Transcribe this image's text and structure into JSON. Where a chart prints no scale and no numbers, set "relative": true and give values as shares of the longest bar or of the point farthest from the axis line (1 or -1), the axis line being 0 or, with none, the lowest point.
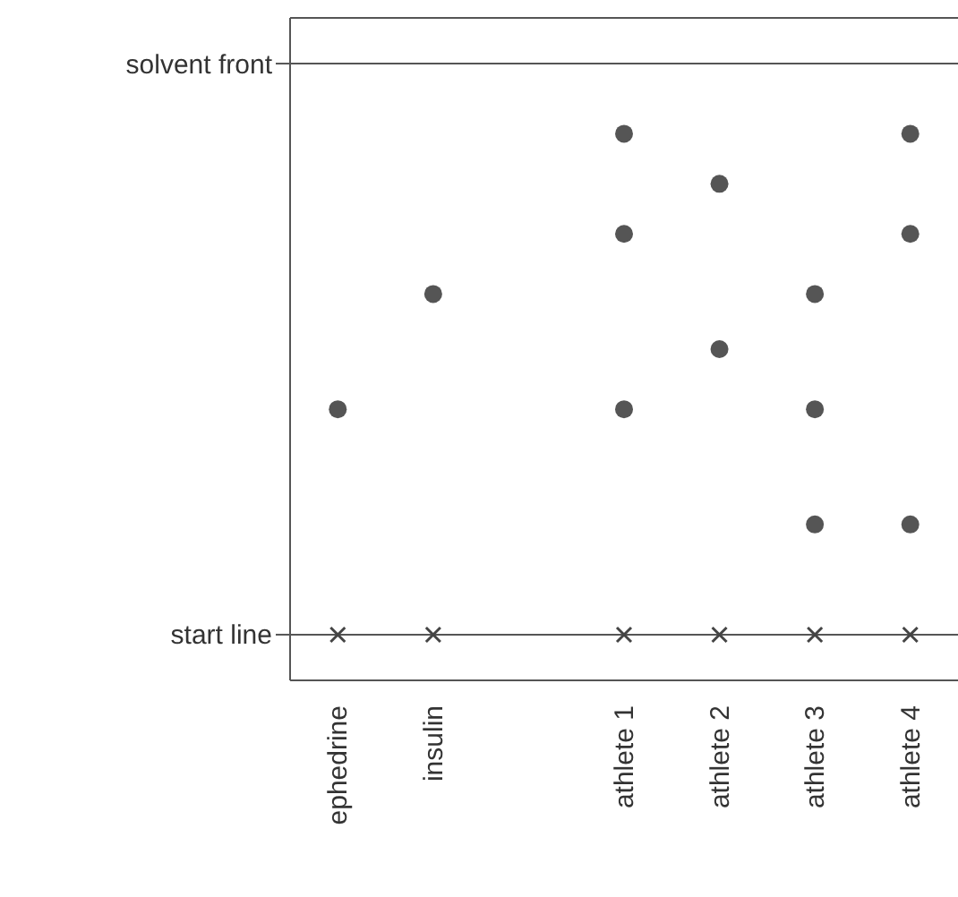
{
  "chart_data": {
    "type": "scatter",
    "relative": true,
    "categories": [
      "ephedrine",
      "insulin",
      null,
      "athlete 1",
      "athlete 2",
      "athlete 3",
      "athlete 4"
    ],
    "ref_lines": [
      {
        "axis": "y",
        "value": 1.14,
        "label": "solvent front",
        "color": "#555555"
      },
      {
        "axis": "y",
        "value": 0,
        "label": "start line",
        "color": "#555555"
      }
    ],
    "grid": false,
    "series": [
      {
        "color": "#555555",
        "marker": "circle",
        "x": [
          "ephedrine",
          "insulin",
          "athlete 1",
          "athlete 1",
          "athlete 1",
          "athlete 2",
          "athlete 2",
          "athlete 3",
          "athlete 3",
          "athlete 3",
          "athlete 4",
          "athlete 4",
          "athlete 4"
        ],
        "values": [
          0.45,
          0.68,
          1,
          0.8,
          0.45,
          0.9,
          0.57,
          0.68,
          0.45,
          0.22,
          1,
          0.8,
          0.22
        ]
      },
      {
        "color": "#444444",
        "marker": "cross",
        "x": [
          "ephedrine",
          "insulin",
          "athlete 1",
          "athlete 2",
          "athlete 3",
          "athlete 4"
        ],
        "values": [
          0,
          0,
          0,
          0,
          0,
          0
        ]
      }
    ]
  }
}
